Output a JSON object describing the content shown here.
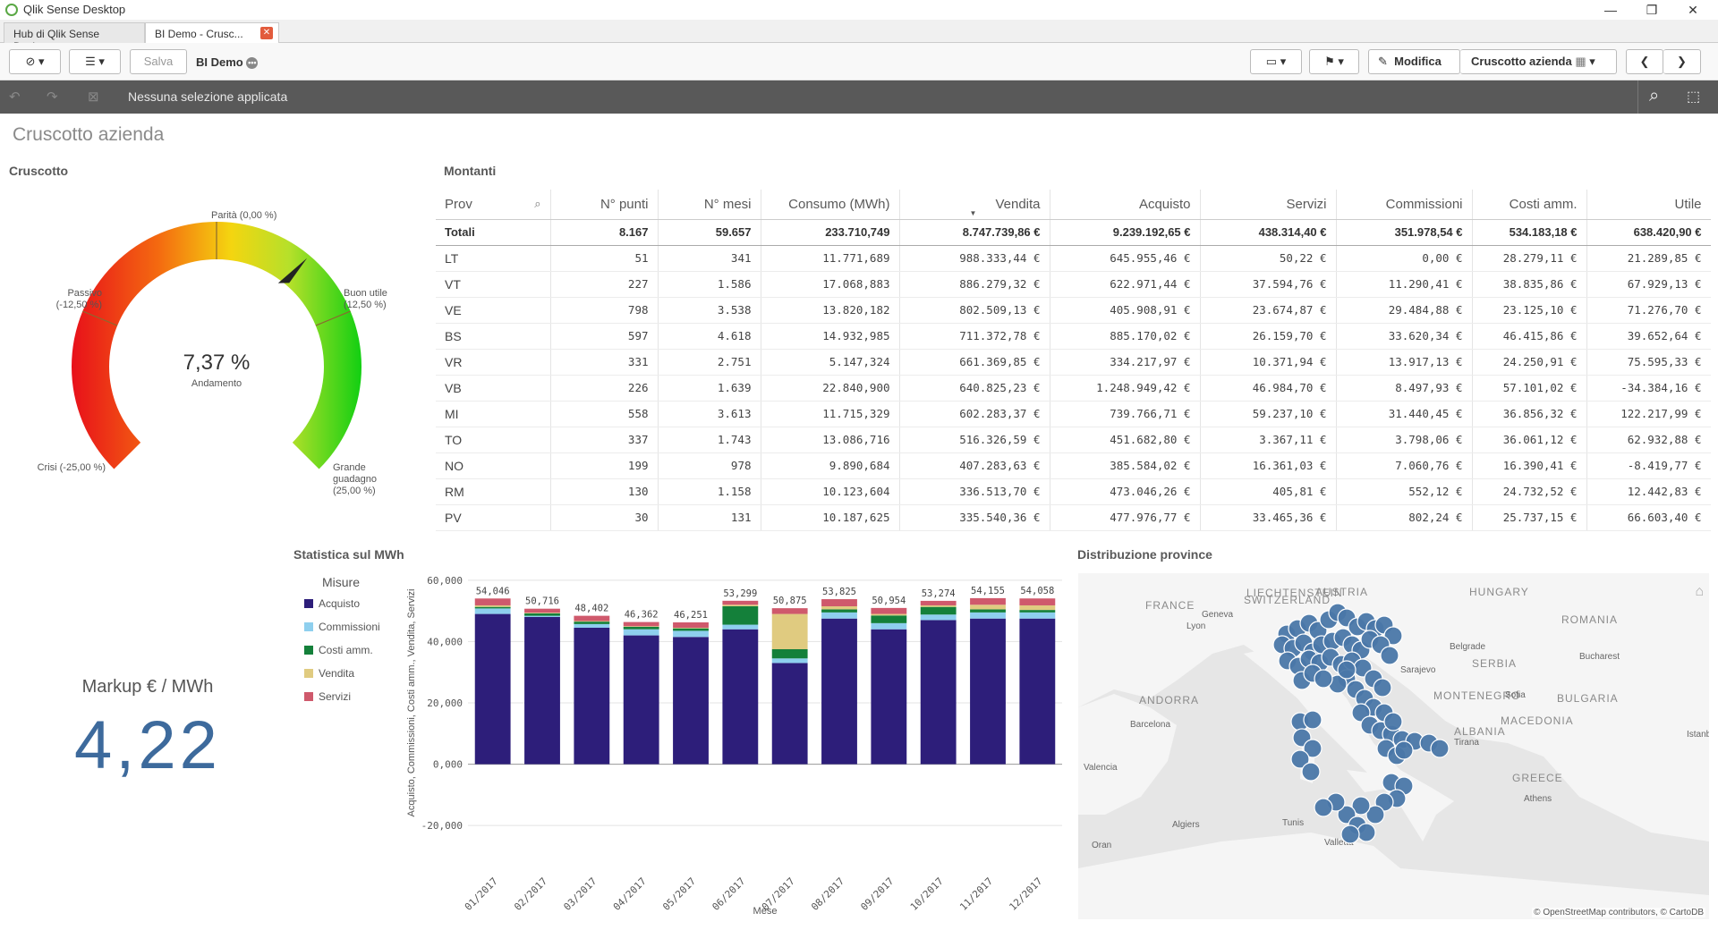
{
  "window": {
    "title": "Qlik Sense Desktop"
  },
  "tabs": [
    {
      "label": "Hub di Qlik Sense Desktop"
    },
    {
      "label": "BI Demo - Crusc..."
    }
  ],
  "toolbar": {
    "save_label": "Salva",
    "app_name": "BI Demo",
    "edit_label": "Modifica",
    "sheet_name": "Cruscotto azienda"
  },
  "selections": {
    "text": "Nessuna selezione applicata"
  },
  "sheet": {
    "title": "Cruscotto azienda"
  },
  "gauge": {
    "title": "Cruscotto",
    "value_text": "7,37 %",
    "value_label": "Andamento",
    "value": 0.0737,
    "min": -0.25,
    "max": 0.25,
    "labels": {
      "crisi": "Crisi (-25,00 %)",
      "passivo": "Passivo (-12,50 %)",
      "parita": "Parità (0,00 %)",
      "buon_utile": "Buon utile (12,50 %)",
      "grande": "Grande guadagno (25,00 %)"
    }
  },
  "kpi": {
    "label": "Markup € / MWh",
    "value": "4,22"
  },
  "table": {
    "title": "Montanti",
    "columns": [
      "Prov",
      "N° punti",
      "N° mesi",
      "Consumo (MWh)",
      "Vendita",
      "Acquisto",
      "Servizi",
      "Commissioni",
      "Costi amm.",
      "Utile"
    ],
    "totals": [
      "Totali",
      "8.167",
      "59.657",
      "233.710,749",
      "8.747.739,86 €",
      "9.239.192,65 €",
      "438.314,40 €",
      "351.978,54 €",
      "534.183,18 €",
      "638.420,90 €"
    ],
    "rows": [
      [
        "LT",
        "51",
        "341",
        "11.771,689",
        "988.333,44 €",
        "645.955,46 €",
        "50,22 €",
        "0,00 €",
        "28.279,11 €",
        "21.289,85 €"
      ],
      [
        "VT",
        "227",
        "1.586",
        "17.068,883",
        "886.279,32 €",
        "622.971,44 €",
        "37.594,76 €",
        "11.290,41 €",
        "38.835,86 €",
        "67.929,13 €"
      ],
      [
        "VE",
        "798",
        "3.538",
        "13.820,182",
        "802.509,13 €",
        "405.908,91 €",
        "23.674,87 €",
        "29.484,88 €",
        "23.125,10 €",
        "71.276,70 €"
      ],
      [
        "BS",
        "597",
        "4.618",
        "14.932,985",
        "711.372,78 €",
        "885.170,02 €",
        "26.159,70 €",
        "33.620,34 €",
        "46.415,86 €",
        "39.652,64 €"
      ],
      [
        "VR",
        "331",
        "2.751",
        "5.147,324",
        "661.369,85 €",
        "334.217,97 €",
        "10.371,94 €",
        "13.917,13 €",
        "24.250,91 €",
        "75.595,33 €"
      ],
      [
        "VB",
        "226",
        "1.639",
        "22.840,900",
        "640.825,23 €",
        "1.248.949,42 €",
        "46.984,70 €",
        "8.497,93 €",
        "57.101,02 €",
        "-34.384,16 €"
      ],
      [
        "MI",
        "558",
        "3.613",
        "11.715,329",
        "602.283,37 €",
        "739.766,71 €",
        "59.237,10 €",
        "31.440,45 €",
        "36.856,32 €",
        "122.217,99 €"
      ],
      [
        "TO",
        "337",
        "1.743",
        "13.086,716",
        "516.326,59 €",
        "451.682,80 €",
        "3.367,11 €",
        "3.798,06 €",
        "36.061,12 €",
        "62.932,88 €"
      ],
      [
        "NO",
        "199",
        "978",
        "9.890,684",
        "407.283,63 €",
        "385.584,02 €",
        "16.361,03 €",
        "7.060,76 €",
        "16.390,41 €",
        "-8.419,77 €"
      ],
      [
        "RM",
        "130",
        "1.158",
        "10.123,604",
        "336.513,70 €",
        "473.046,26 €",
        "405,81 €",
        "552,12 €",
        "24.732,52 €",
        "12.442,83 €"
      ],
      [
        "PV",
        "30",
        "131",
        "10.187,625",
        "335.540,36 €",
        "477.976,77 €",
        "33.465,36 €",
        "802,24 €",
        "25.737,15 €",
        "66.603,40 €"
      ]
    ]
  },
  "chart_data": {
    "type": "bar",
    "title": "Statistica sul MWh",
    "xlabel": "Mese",
    "ylabel": "Acquisto, Commissioni, Costi amm., Vendita, Servizi",
    "legend_title": "Misure",
    "legend_position": "left",
    "ylim": [
      -22000,
      62000
    ],
    "yticks": [
      -20000,
      0,
      20000,
      40000,
      60000
    ],
    "ytick_labels": [
      "-20,000",
      "0,000",
      "20,000",
      "40,000",
      "60,000"
    ],
    "categories": [
      "01/2017",
      "02/2017",
      "03/2017",
      "04/2017",
      "05/2017",
      "06/2017",
      "07/2017",
      "08/2017",
      "09/2017",
      "10/2017",
      "11/2017",
      "12/2017"
    ],
    "totals": [
      "54,046",
      "50,716",
      "48,402",
      "46,362",
      "46,251",
      "53,299",
      "50,875",
      "53,825",
      "50,954",
      "53,274",
      "54,155",
      "54,058"
    ],
    "total_values": [
      54046,
      50716,
      48402,
      46362,
      46251,
      53299,
      50875,
      53825,
      50954,
      53274,
      54155,
      54058
    ],
    "stacked": true,
    "series": [
      {
        "name": "Acquisto",
        "color": "#2d1e7a",
        "values": [
          49000,
          48000,
          44500,
          42000,
          41500,
          44000,
          33000,
          47500,
          44000,
          47000,
          47500,
          47500
        ]
      },
      {
        "name": "Commissioni",
        "color": "#8ecfee",
        "values": [
          1800,
          400,
          1200,
          2000,
          2000,
          1500,
          1500,
          2000,
          2000,
          1800,
          2000,
          2000
        ]
      },
      {
        "name": "Costi amm.",
        "color": "#14803a",
        "values": [
          500,
          800,
          800,
          800,
          800,
          6000,
          3000,
          1000,
          2500,
          2500,
          1000,
          800
        ]
      },
      {
        "name": "Vendita",
        "color": "#e0cb80",
        "values": [
          500,
          200,
          200,
          200,
          200,
          500,
          11500,
          1000,
          500,
          500,
          1500,
          1500
        ]
      },
      {
        "name": "Servizi",
        "color": "#cf596c",
        "values": [
          2246,
          1316,
          1702,
          1362,
          1751,
          1299,
          1875,
          2325,
          1954,
          1474,
          2155,
          2258
        ]
      }
    ]
  },
  "map": {
    "title": "Distribuzione province",
    "attribution": "© OpenStreetMap contributors, © CartoDB",
    "country_labels": [
      "FRANCE",
      "SWITZERLAND",
      "LIECHTENSTEIN",
      "AUSTRIA",
      "HUNGARY",
      "ROMANIA",
      "SERBIA",
      "ANDORRA",
      "MONTENEGRO",
      "BULGARIA",
      "MACEDONIA",
      "ALBANIA",
      "GREECE"
    ],
    "city_labels": [
      "Geneva",
      "Lyon",
      "Belgrade",
      "Sarajevo",
      "Bucharest",
      "Barcelona",
      "Valencia",
      "Sofia",
      "Tirana",
      "Athens",
      "Algiers",
      "Tunis",
      "Valletta",
      "Oran",
      "Istanb"
    ],
    "point_color": "#4a77a8"
  }
}
